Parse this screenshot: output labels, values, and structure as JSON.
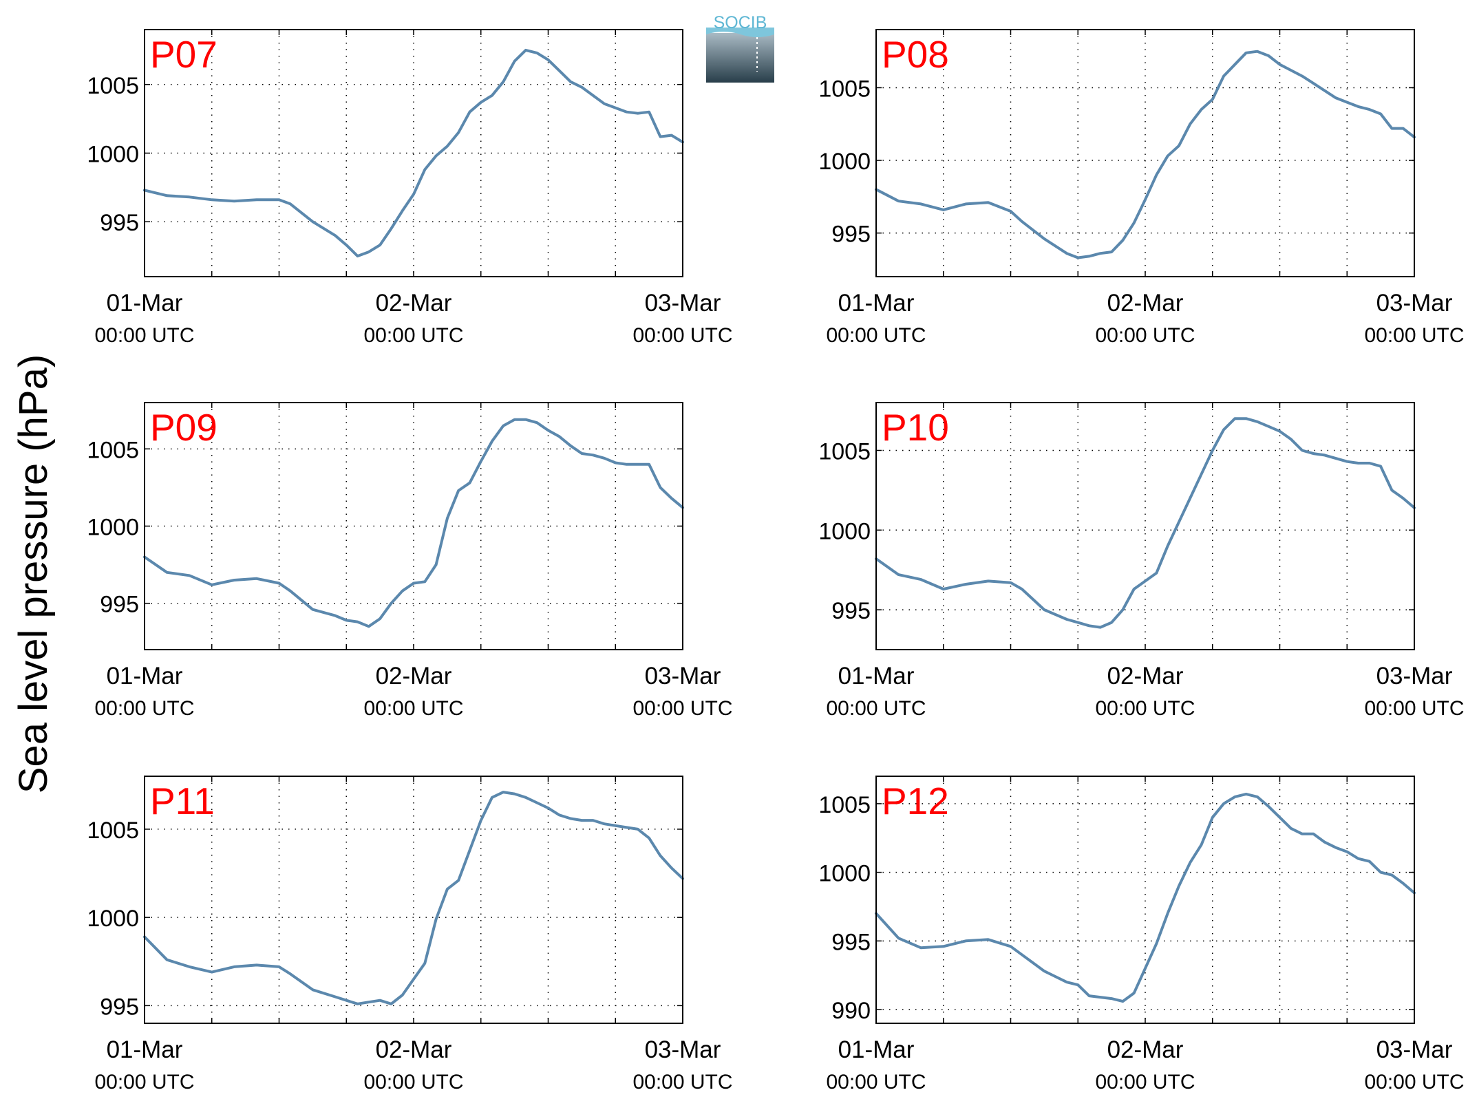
{
  "figure": {
    "ylabel": "Sea level pressure (hPa)",
    "logo_text": "SOCIB",
    "colors": {
      "line": "#5b88ad",
      "panel_label": "#ff0000",
      "axis": "#000000",
      "grid": "#000000"
    }
  },
  "chart_data": [
    {
      "type": "line",
      "panel_label": "P07",
      "xlabel": "",
      "ylabel": "Sea level pressure (hPa)",
      "x_ticks": [
        {
          "date": "01-Mar",
          "time": "00:00 UTC"
        },
        {
          "date": "02-Mar",
          "time": "00:00 UTC"
        },
        {
          "date": "03-Mar",
          "time": "00:00 UTC"
        }
      ],
      "x_range_hours": [
        0,
        48
      ],
      "ylim": [
        991,
        1009
      ],
      "y_ticks": [
        995,
        1000,
        1005
      ],
      "grid": true,
      "series": [
        {
          "x_hours": [
            0,
            2,
            4,
            6,
            8,
            10,
            12,
            13,
            15,
            17,
            18,
            19,
            20,
            21,
            22,
            23,
            24,
            25,
            26,
            27,
            28,
            29,
            30,
            31,
            32,
            33,
            34,
            35,
            36,
            37,
            38,
            39,
            40,
            41,
            42,
            43,
            44,
            45,
            46,
            47,
            48
          ],
          "values": [
            997.3,
            996.9,
            996.8,
            996.6,
            996.5,
            996.6,
            996.6,
            996.3,
            995.0,
            994.0,
            993.3,
            992.5,
            992.8,
            993.3,
            994.5,
            995.8,
            997.0,
            998.8,
            999.8,
            1000.5,
            1001.5,
            1003.0,
            1003.7,
            1004.2,
            1005.2,
            1006.7,
            1007.5,
            1007.3,
            1006.8,
            1006.0,
            1005.2,
            1004.8,
            1004.2,
            1003.6,
            1003.3,
            1003.0,
            1002.9,
            1003.0,
            1001.2,
            1001.3,
            1000.8
          ]
        }
      ]
    },
    {
      "type": "line",
      "panel_label": "P08",
      "xlabel": "",
      "ylabel": "Sea level pressure (hPa)",
      "x_ticks": [
        {
          "date": "01-Mar",
          "time": "00:00 UTC"
        },
        {
          "date": "02-Mar",
          "time": "00:00 UTC"
        },
        {
          "date": "03-Mar",
          "time": "00:00 UTC"
        }
      ],
      "x_range_hours": [
        0,
        48
      ],
      "ylim": [
        992,
        1009
      ],
      "y_ticks": [
        995,
        1000,
        1005
      ],
      "grid": true,
      "series": [
        {
          "x_hours": [
            0,
            2,
            4,
            6,
            8,
            10,
            12,
            13,
            15,
            17,
            18,
            19,
            20,
            21,
            22,
            23,
            24,
            25,
            26,
            27,
            28,
            29,
            30,
            31,
            32,
            33,
            34,
            35,
            36,
            37,
            38,
            39,
            40,
            41,
            42,
            43,
            44,
            45,
            46,
            47,
            48
          ],
          "values": [
            998.0,
            997.2,
            997.0,
            996.6,
            997.0,
            997.1,
            996.5,
            995.8,
            994.6,
            993.6,
            993.3,
            993.4,
            993.6,
            993.7,
            994.5,
            995.7,
            997.3,
            999.0,
            1000.3,
            1001.0,
            1002.5,
            1003.5,
            1004.2,
            1005.8,
            1006.6,
            1007.4,
            1007.5,
            1007.2,
            1006.6,
            1006.2,
            1005.8,
            1005.3,
            1004.8,
            1004.3,
            1004.0,
            1003.7,
            1003.5,
            1003.2,
            1002.2,
            1002.2,
            1001.6
          ]
        }
      ]
    },
    {
      "type": "line",
      "panel_label": "P09",
      "xlabel": "",
      "ylabel": "Sea level pressure (hPa)",
      "x_ticks": [
        {
          "date": "01-Mar",
          "time": "00:00 UTC"
        },
        {
          "date": "02-Mar",
          "time": "00:00 UTC"
        },
        {
          "date": "03-Mar",
          "time": "00:00 UTC"
        }
      ],
      "x_range_hours": [
        0,
        48
      ],
      "ylim": [
        992,
        1008
      ],
      "y_ticks": [
        995,
        1000,
        1005
      ],
      "grid": true,
      "series": [
        {
          "x_hours": [
            0,
            2,
            4,
            6,
            8,
            10,
            12,
            13,
            15,
            17,
            18,
            19,
            20,
            21,
            22,
            23,
            24,
            25,
            26,
            27,
            28,
            29,
            30,
            31,
            32,
            33,
            34,
            35,
            36,
            37,
            38,
            39,
            40,
            41,
            42,
            43,
            44,
            45,
            46,
            47,
            48
          ],
          "values": [
            998.0,
            997.0,
            996.8,
            996.2,
            996.5,
            996.6,
            996.3,
            995.8,
            994.6,
            994.2,
            993.9,
            993.8,
            993.5,
            994.0,
            995.0,
            995.8,
            996.3,
            996.4,
            997.5,
            1000.5,
            1002.3,
            1002.8,
            1004.2,
            1005.5,
            1006.5,
            1006.9,
            1006.9,
            1006.7,
            1006.2,
            1005.8,
            1005.2,
            1004.7,
            1004.6,
            1004.4,
            1004.1,
            1004.0,
            1004.0,
            1004.0,
            1002.5,
            1001.8,
            1001.2
          ]
        }
      ]
    },
    {
      "type": "line",
      "panel_label": "P10",
      "xlabel": "",
      "ylabel": "Sea level pressure (hPa)",
      "x_ticks": [
        {
          "date": "01-Mar",
          "time": "00:00 UTC"
        },
        {
          "date": "02-Mar",
          "time": "00:00 UTC"
        },
        {
          "date": "03-Mar",
          "time": "00:00 UTC"
        }
      ],
      "x_range_hours": [
        0,
        48
      ],
      "ylim": [
        992.5,
        1008
      ],
      "y_ticks": [
        995,
        1000,
        1005
      ],
      "grid": true,
      "series": [
        {
          "x_hours": [
            0,
            2,
            4,
            6,
            8,
            10,
            12,
            13,
            15,
            17,
            18,
            19,
            20,
            21,
            22,
            23,
            24,
            25,
            26,
            27,
            28,
            29,
            30,
            31,
            32,
            33,
            34,
            35,
            36,
            37,
            38,
            39,
            40,
            41,
            42,
            43,
            44,
            45,
            46,
            47,
            48
          ],
          "values": [
            998.2,
            997.2,
            996.9,
            996.3,
            996.6,
            996.8,
            996.7,
            996.3,
            995.0,
            994.4,
            994.2,
            994.0,
            993.9,
            994.2,
            995.0,
            996.3,
            996.8,
            997.3,
            999.0,
            1000.5,
            1002.0,
            1003.5,
            1005.0,
            1006.3,
            1007.0,
            1007.0,
            1006.8,
            1006.5,
            1006.2,
            1005.7,
            1005.0,
            1004.8,
            1004.7,
            1004.5,
            1004.3,
            1004.2,
            1004.2,
            1004.0,
            1002.5,
            1002.0,
            1001.4
          ]
        }
      ]
    },
    {
      "type": "line",
      "panel_label": "P11",
      "xlabel": "",
      "ylabel": "Sea level pressure (hPa)",
      "x_ticks": [
        {
          "date": "01-Mar",
          "time": "00:00 UTC"
        },
        {
          "date": "02-Mar",
          "time": "00:00 UTC"
        },
        {
          "date": "03-Mar",
          "time": "00:00 UTC"
        }
      ],
      "x_range_hours": [
        0,
        48
      ],
      "ylim": [
        994,
        1008
      ],
      "y_ticks": [
        995,
        1000,
        1005
      ],
      "grid": true,
      "series": [
        {
          "x_hours": [
            0,
            2,
            4,
            6,
            8,
            10,
            12,
            13,
            15,
            17,
            18,
            19,
            20,
            21,
            22,
            23,
            24,
            25,
            26,
            27,
            28,
            29,
            30,
            31,
            32,
            33,
            34,
            35,
            36,
            37,
            38,
            39,
            40,
            41,
            42,
            43,
            44,
            45,
            46,
            47,
            48
          ],
          "values": [
            998.9,
            997.6,
            997.2,
            996.9,
            997.2,
            997.3,
            997.2,
            996.8,
            995.9,
            995.5,
            995.3,
            995.1,
            995.2,
            995.3,
            995.1,
            995.6,
            996.5,
            997.4,
            999.9,
            1001.6,
            1002.1,
            1003.8,
            1005.5,
            1006.8,
            1007.1,
            1007.0,
            1006.8,
            1006.5,
            1006.2,
            1005.8,
            1005.6,
            1005.5,
            1005.5,
            1005.3,
            1005.2,
            1005.1,
            1005.0,
            1004.5,
            1003.5,
            1002.8,
            1002.2
          ]
        }
      ]
    },
    {
      "type": "line",
      "panel_label": "P12",
      "xlabel": "",
      "ylabel": "Sea level pressure (hPa)",
      "x_ticks": [
        {
          "date": "01-Mar",
          "time": "00:00 UTC"
        },
        {
          "date": "02-Mar",
          "time": "00:00 UTC"
        },
        {
          "date": "03-Mar",
          "time": "00:00 UTC"
        }
      ],
      "x_range_hours": [
        0,
        48
      ],
      "ylim": [
        989,
        1007
      ],
      "y_ticks": [
        990,
        995,
        1000,
        1005
      ],
      "grid": true,
      "series": [
        {
          "x_hours": [
            0,
            2,
            4,
            6,
            8,
            10,
            12,
            13,
            15,
            17,
            18,
            19,
            20,
            21,
            22,
            23,
            24,
            25,
            26,
            27,
            28,
            29,
            30,
            31,
            32,
            33,
            34,
            35,
            36,
            37,
            38,
            39,
            40,
            41,
            42,
            43,
            44,
            45,
            46,
            47,
            48
          ],
          "values": [
            997.0,
            995.2,
            994.5,
            994.6,
            995.0,
            995.1,
            994.6,
            994.0,
            992.8,
            992.0,
            991.8,
            991.0,
            990.9,
            990.8,
            990.6,
            991.2,
            993.0,
            994.8,
            997.0,
            999.0,
            1000.7,
            1002.0,
            1004.0,
            1005.0,
            1005.5,
            1005.7,
            1005.5,
            1004.8,
            1004.0,
            1003.2,
            1002.8,
            1002.8,
            1002.2,
            1001.8,
            1001.5,
            1001.0,
            1000.8,
            1000.0,
            999.8,
            999.2,
            998.5
          ]
        }
      ]
    }
  ]
}
